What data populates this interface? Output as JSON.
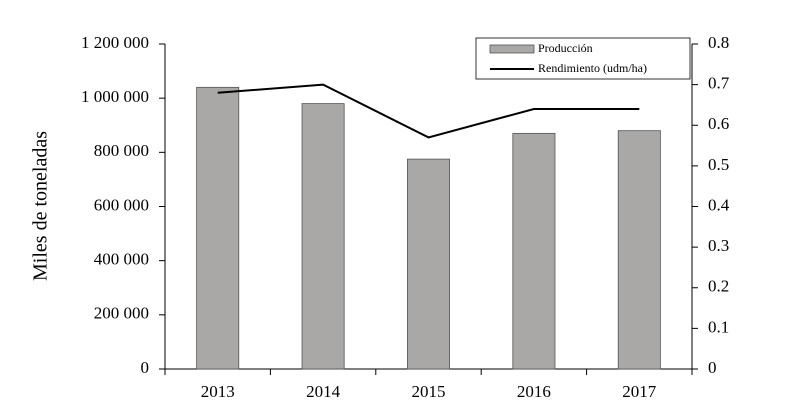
{
  "chart_data": {
    "type": "bar",
    "y_label": "Miles de toneladas",
    "categories": [
      "2013",
      "2014",
      "2015",
      "2016",
      "2017"
    ],
    "series": [
      {
        "name": "Producción",
        "color": "#aaa7a7",
        "values": [
          1040000,
          980000,
          775000,
          870000,
          880000
        ]
      },
      {
        "name": "Rendimiento (udm/ha)",
        "color": "#000000",
        "type": "line",
        "axis": "y2",
        "values": [
          0.68,
          0.7,
          0.57,
          0.64,
          0.64
        ]
      }
    ],
    "ylim": [
      0,
      1200000
    ],
    "yticks": [
      0,
      {
        "value": 200000,
        "label": "200 000"
      },
      {
        "value": 400000,
        "label": "400 000"
      },
      {
        "value": 600000,
        "label": "600 000"
      },
      {
        "value": 800000,
        "label": "800 000"
      },
      {
        "value": 1000000,
        "label": "1 000 000"
      },
      {
        "value": 1200000,
        "label": "1 200 000"
      }
    ],
    "y2lim": [
      0,
      0.8
    ],
    "y2ticks": [
      0,
      0.1,
      0.2,
      0.3,
      0.4,
      0.5,
      0.6,
      0.7,
      0.8
    ],
    "legend": "top-right"
  }
}
